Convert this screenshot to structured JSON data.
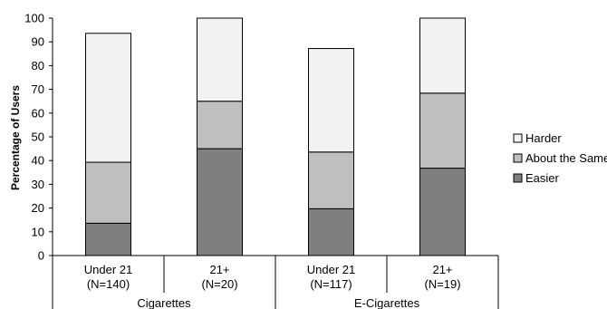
{
  "chart_data": {
    "type": "bar",
    "stacked": true,
    "ylabel": "Percentage of Users",
    "ylim": [
      0,
      100
    ],
    "yticks": [
      0,
      10,
      20,
      30,
      40,
      50,
      60,
      70,
      80,
      90,
      100
    ],
    "grid": false,
    "legend_position": "right",
    "categories": [
      {
        "line1": "Under 21",
        "line2": "(N=140)"
      },
      {
        "line1": "21+",
        "line2": "(N=20)"
      },
      {
        "line1": "Under 21",
        "line2": "(N=117)"
      },
      {
        "line1": "21+",
        "line2": "(N=19)"
      }
    ],
    "groups": [
      {
        "label": "Cigarettes",
        "categories": [
          0,
          1
        ]
      },
      {
        "label": "E-Cigarettes",
        "categories": [
          2,
          3
        ]
      }
    ],
    "series": [
      {
        "name": "Easier",
        "color": "#7f7f7f",
        "values": [
          13.6,
          45.0,
          19.7,
          36.8
        ]
      },
      {
        "name": "About the Same",
        "color": "#bfbfbf",
        "values": [
          25.7,
          20.0,
          23.9,
          31.6
        ]
      },
      {
        "name": "Harder",
        "color": "#f2f2f2",
        "values": [
          54.3,
          35.0,
          43.6,
          31.6
        ]
      }
    ],
    "legend_order": [
      "Harder",
      "About the Same",
      "Easier"
    ]
  }
}
